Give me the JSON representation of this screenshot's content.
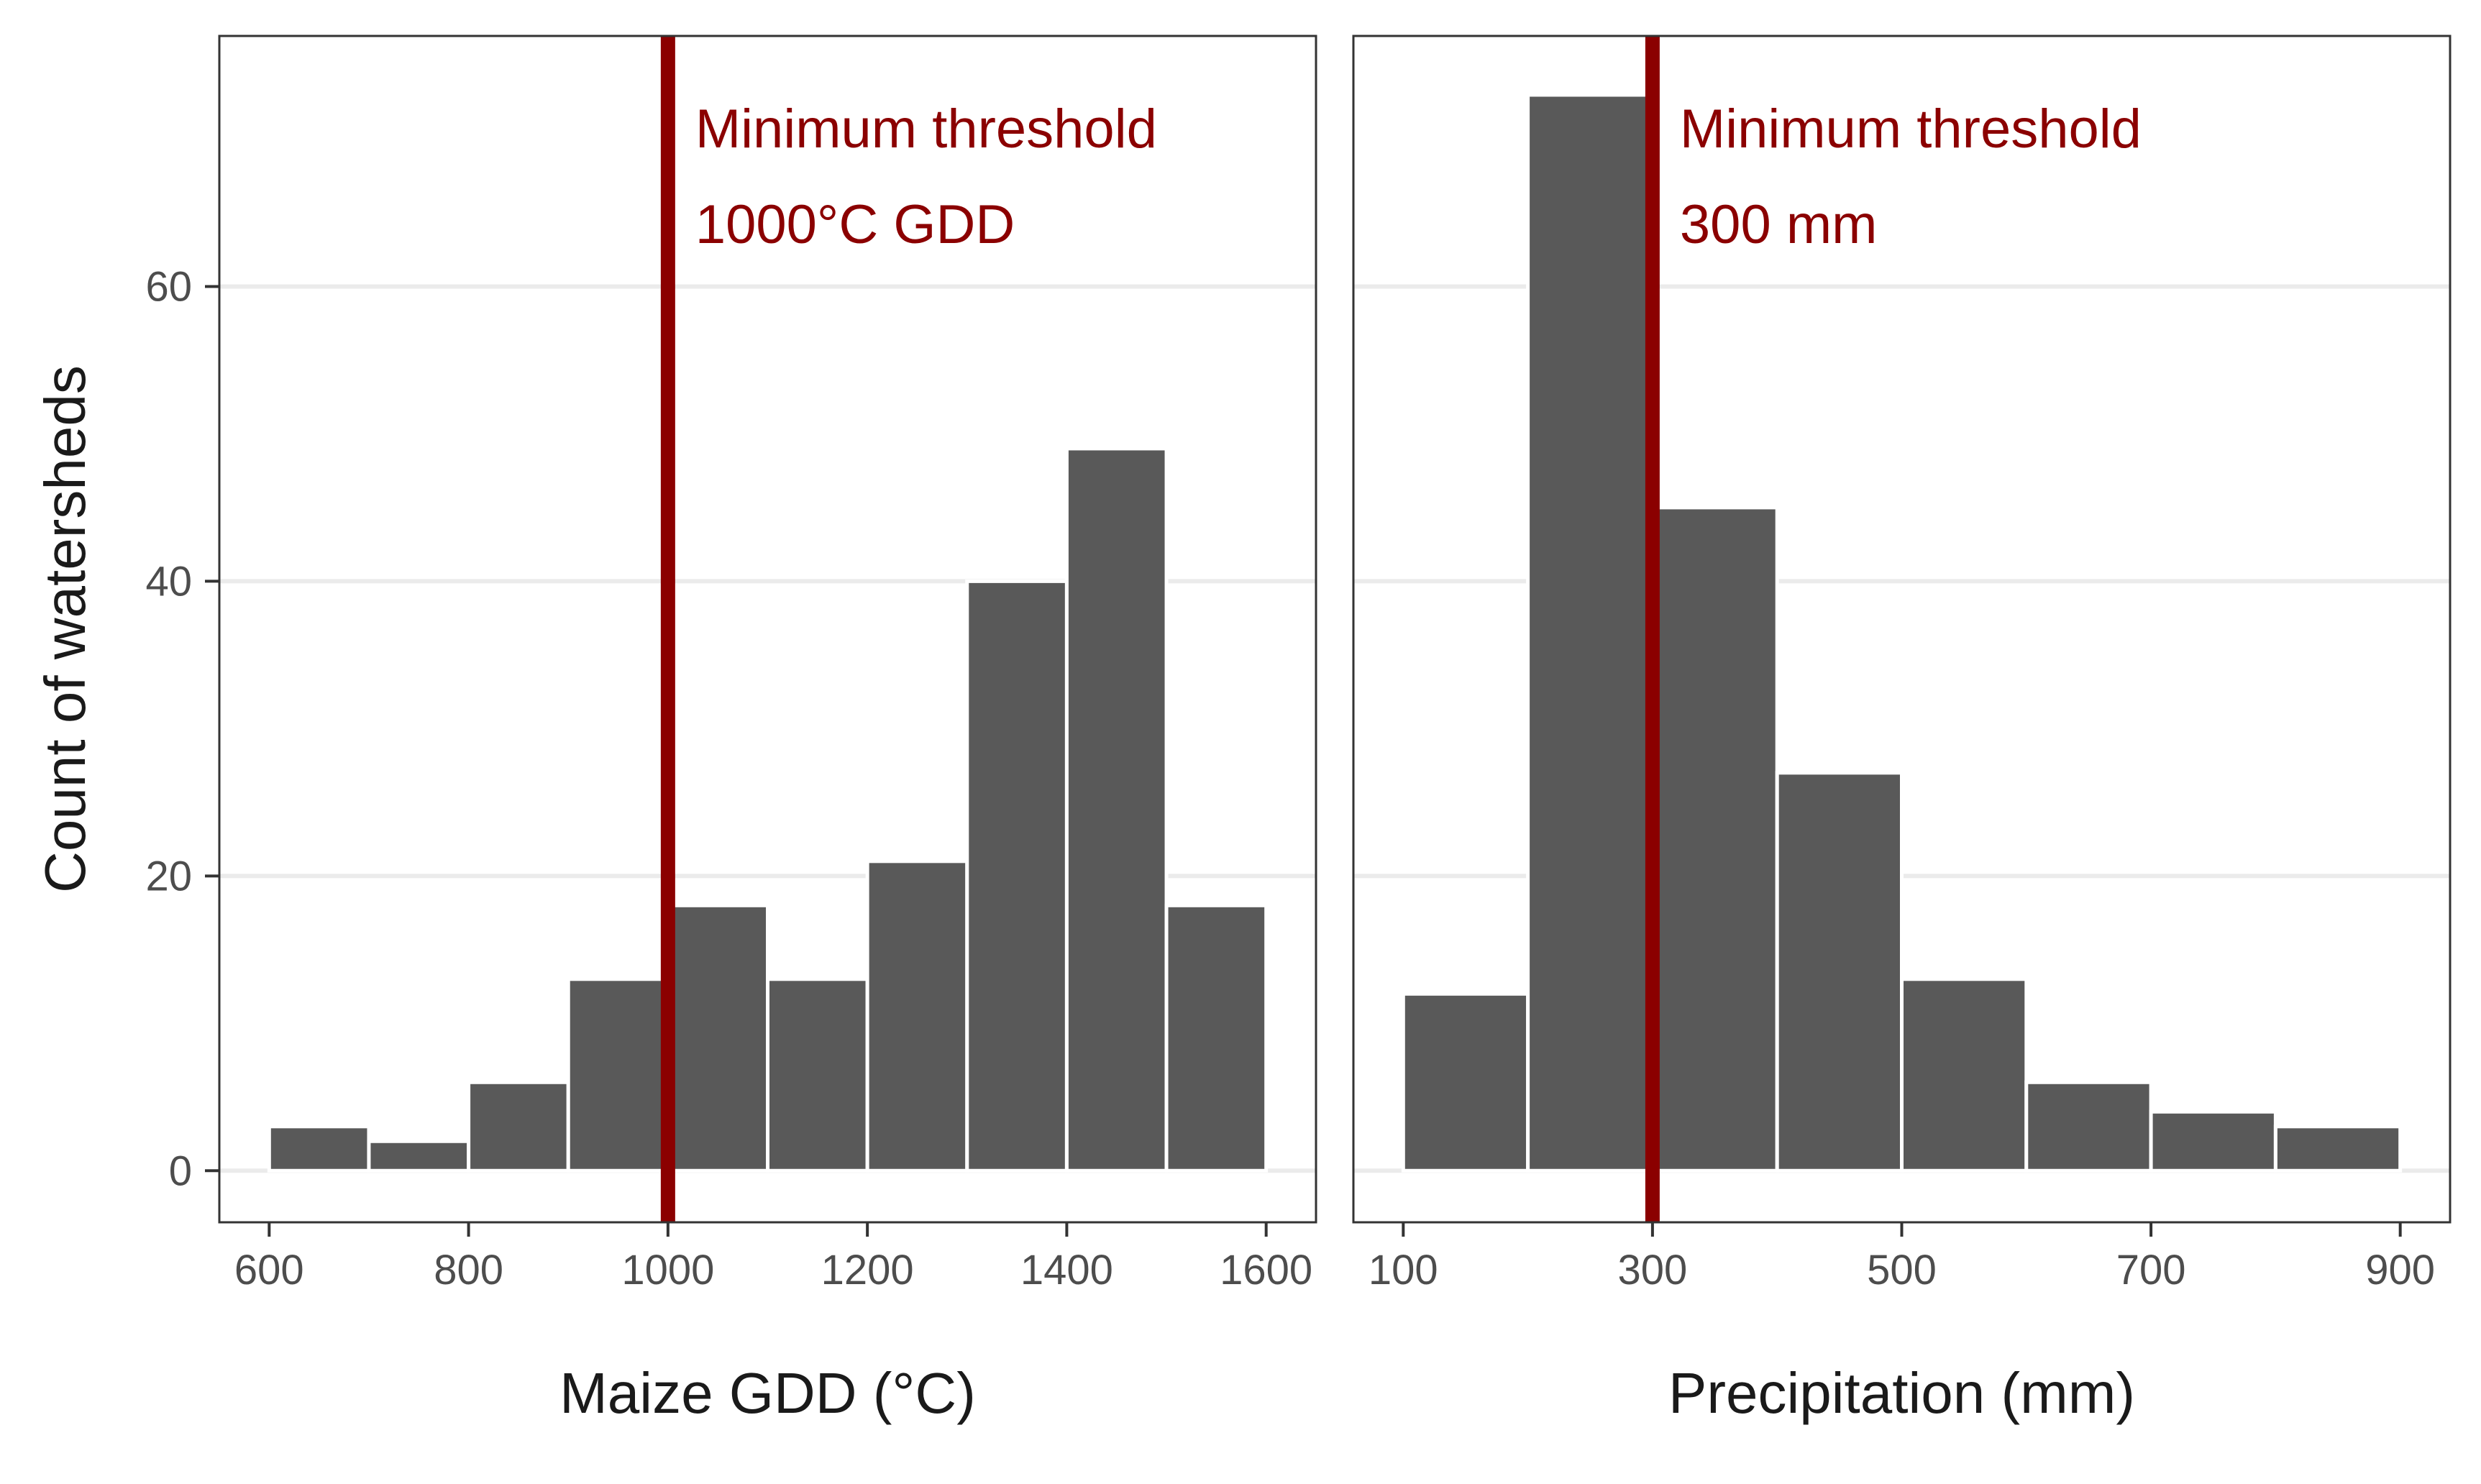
{
  "chart_data": [
    {
      "type": "bar",
      "subtype": "histogram",
      "xlabel": "Maize GDD (°C)",
      "ylabel": "Count of watersheds",
      "bin_edges": [
        600,
        700,
        800,
        900,
        1000,
        1100,
        1200,
        1300,
        1400,
        1500,
        1600
      ],
      "values": [
        3,
        2,
        6,
        13,
        18,
        13,
        21,
        40,
        49,
        18
      ],
      "xlim": [
        550,
        1650
      ],
      "ylim": [
        -3.5,
        77
      ],
      "xticks": [
        600,
        800,
        1000,
        1200,
        1400,
        1600
      ],
      "yticks": [
        0,
        20,
        40,
        60
      ],
      "grid": "horizontal",
      "threshold": {
        "value": 1000,
        "color": "#8b0000",
        "label_lines": [
          "Minimum threshold",
          "1000°C GDD"
        ]
      }
    },
    {
      "type": "bar",
      "subtype": "histogram",
      "xlabel": "Precipitation (mm)",
      "ylabel": "",
      "bin_edges": [
        100,
        200,
        300,
        400,
        500,
        600,
        700,
        800,
        900
      ],
      "values": [
        12,
        73,
        45,
        27,
        13,
        6,
        4,
        3
      ],
      "xlim": [
        60,
        940
      ],
      "ylim": [
        -3.5,
        77
      ],
      "xticks": [
        100,
        300,
        500,
        700,
        900
      ],
      "yticks": [
        0,
        20,
        40,
        60
      ],
      "grid": "horizontal",
      "threshold": {
        "value": 300,
        "color": "#8b0000",
        "label_lines": [
          "Minimum threshold",
          "300 mm"
        ]
      }
    }
  ]
}
